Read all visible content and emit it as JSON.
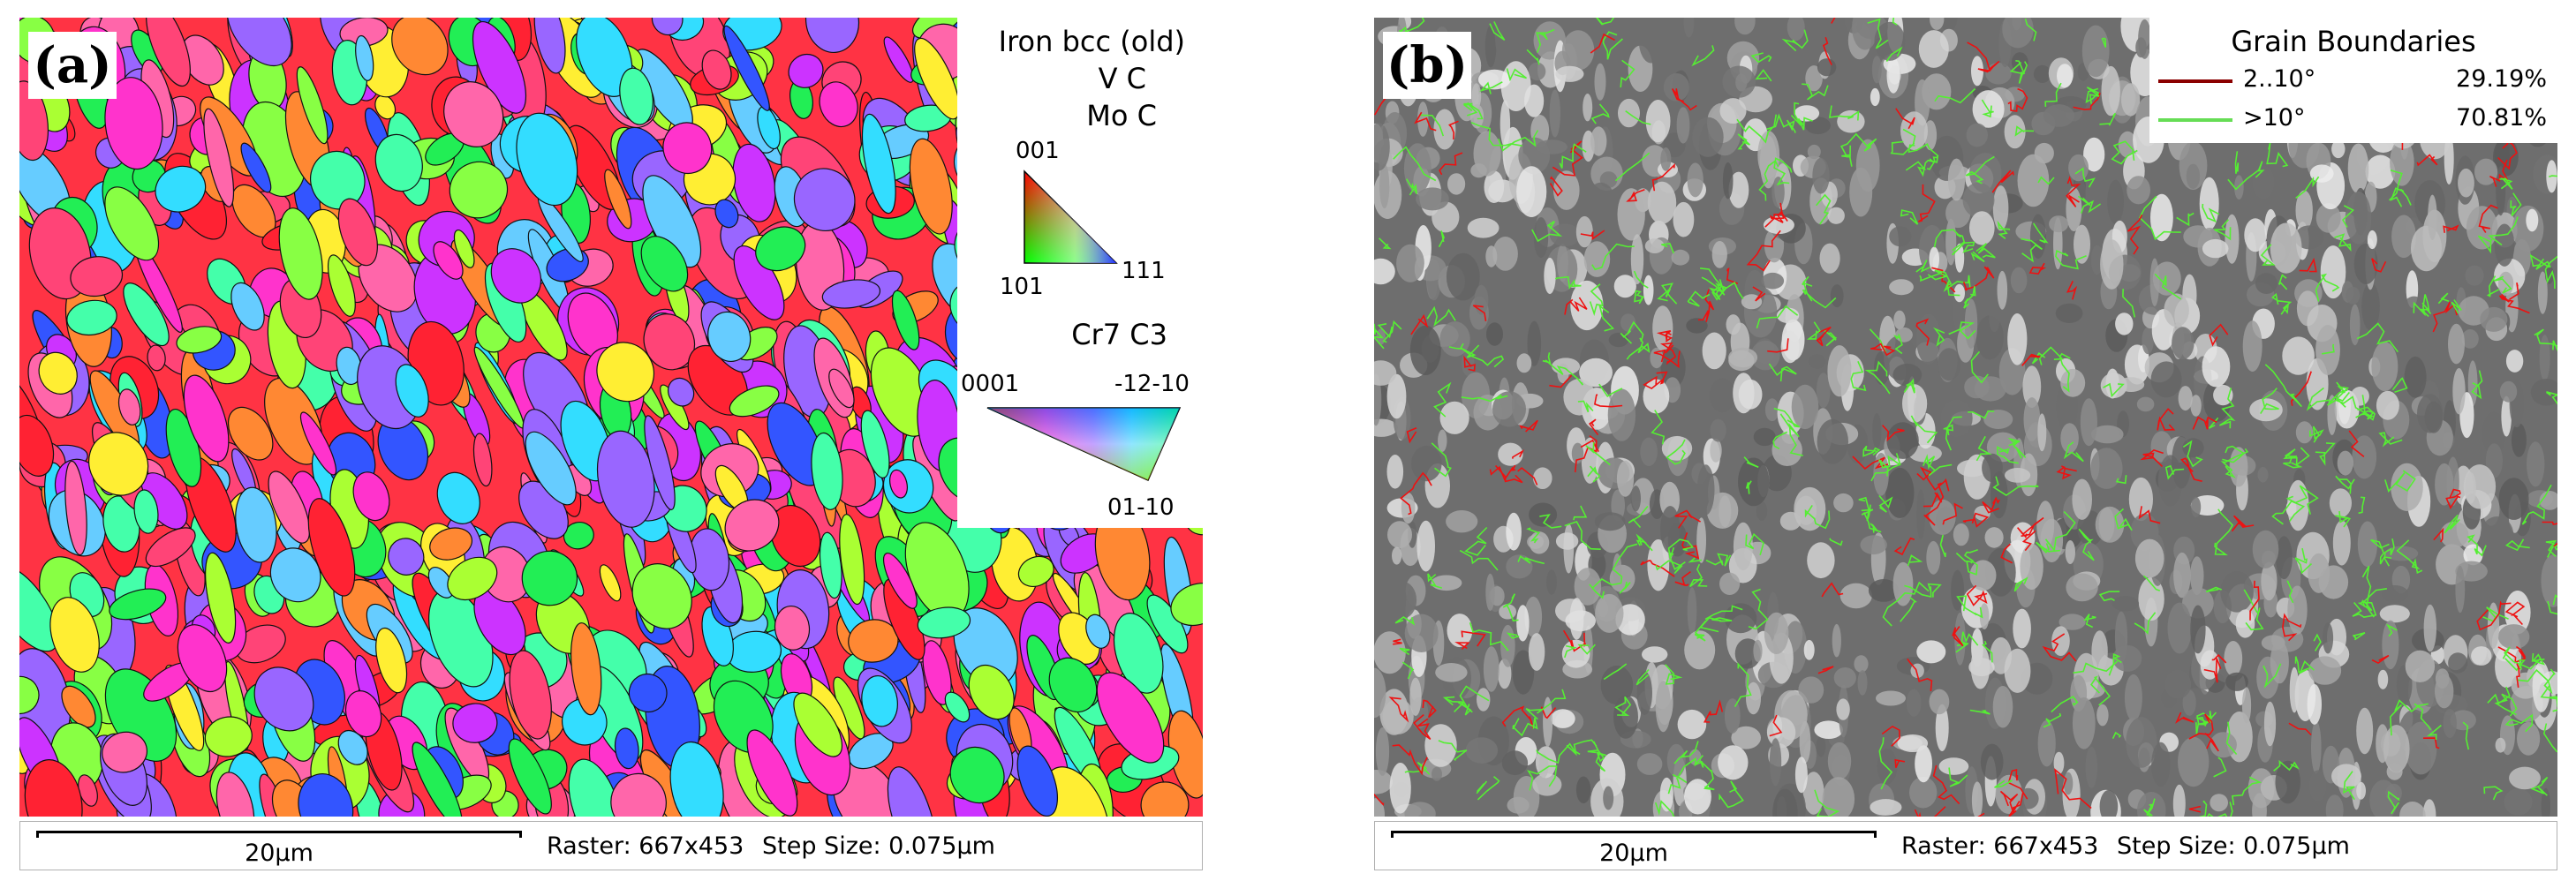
{
  "panel_a": {
    "label": "(a)",
    "legend": {
      "phases": [
        "Iron bcc (old)",
        "V C",
        "Mo C"
      ],
      "ipf_cubic": {
        "top": "001",
        "left": "101",
        "right": "111"
      },
      "hex_phase": "Cr7 C3",
      "ipf_hex": {
        "left": "0001",
        "right": "-12-10",
        "bottom": "01-10"
      }
    },
    "scale_label": "20µm",
    "raster": "Raster: 667x453",
    "step": "Step Size: 0.075µm"
  },
  "panel_b": {
    "label": "(b)",
    "legend": {
      "title": "Grain Boundaries",
      "rows": [
        {
          "label": "2..10°",
          "value": "29.19%",
          "color": "#8b0000"
        },
        {
          "label": ">10°",
          "value": "70.81%",
          "color": "#66dd55"
        }
      ]
    },
    "scale_label": "20µm",
    "raster": "Raster: 667x453",
    "step": "Step Size: 0.075µm"
  }
}
